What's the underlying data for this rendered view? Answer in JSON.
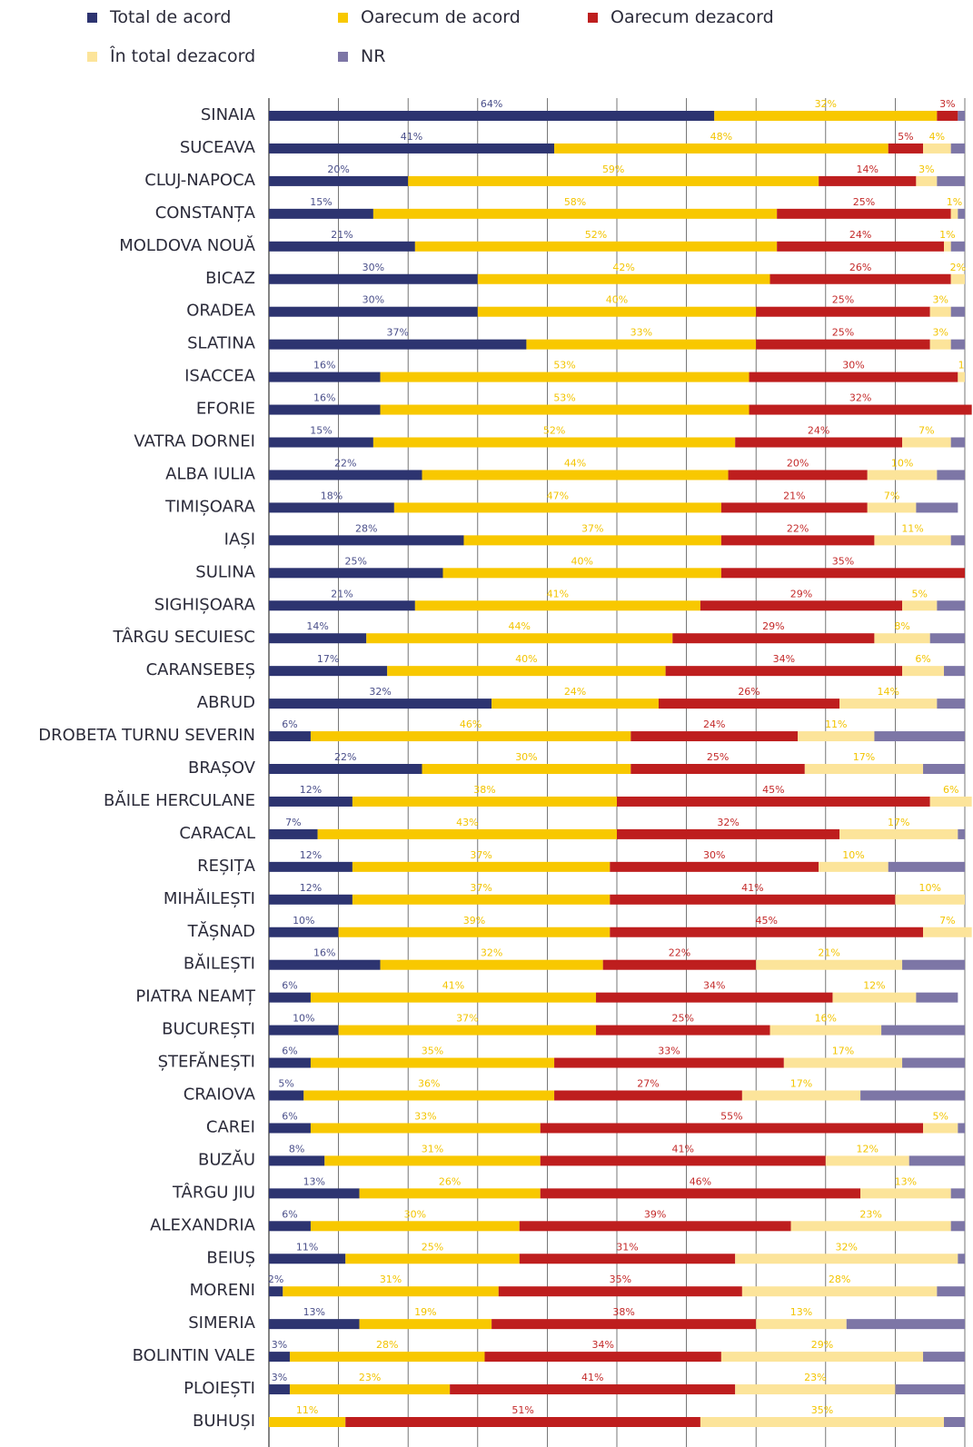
{
  "chart_data": {
    "type": "bar",
    "orientation": "horizontal",
    "stacked": true,
    "unit": "%",
    "grid": true,
    "legend_position": "top",
    "series": [
      {
        "name": "Total de acord",
        "color": "#2d3470",
        "values": [
          64,
          41,
          20,
          15,
          21,
          30,
          30,
          37,
          16,
          16,
          15,
          22,
          18,
          28,
          25,
          21,
          14,
          17,
          32,
          6,
          22,
          12,
          7,
          12,
          12,
          10,
          16,
          6,
          10,
          6,
          5,
          6,
          8,
          13,
          6,
          11,
          2,
          13,
          3,
          3,
          0
        ]
      },
      {
        "name": "Oarecum de acord",
        "color": "#f8c800",
        "values": [
          32,
          48,
          59,
          58,
          52,
          42,
          40,
          33,
          53,
          53,
          52,
          44,
          47,
          37,
          40,
          41,
          44,
          40,
          24,
          46,
          30,
          38,
          43,
          37,
          37,
          39,
          32,
          41,
          37,
          35,
          36,
          33,
          31,
          26,
          30,
          25,
          31,
          19,
          28,
          23,
          11
        ]
      },
      {
        "name": "Oarecum dezacord",
        "color": "#be1e1e",
        "values": [
          3,
          5,
          14,
          25,
          24,
          26,
          25,
          25,
          30,
          32,
          24,
          20,
          21,
          22,
          35,
          29,
          29,
          34,
          26,
          24,
          25,
          45,
          32,
          30,
          41,
          45,
          22,
          34,
          25,
          33,
          27,
          55,
          41,
          46,
          39,
          31,
          35,
          38,
          34,
          41,
          51
        ]
      },
      {
        "name": "În total dezacord",
        "color": "#fce49a",
        "values": [
          0,
          4,
          3,
          1,
          1,
          2,
          3,
          3,
          1,
          0,
          7,
          10,
          7,
          11,
          0,
          5,
          8,
          6,
          14,
          11,
          17,
          6,
          17,
          10,
          10,
          7,
          21,
          12,
          16,
          17,
          17,
          5,
          12,
          13,
          23,
          32,
          28,
          13,
          29,
          23,
          35
        ]
      },
      {
        "name": "NR",
        "color": "#7d76a6",
        "values": [
          1,
          2,
          4,
          1,
          2,
          0,
          2,
          2,
          0,
          0,
          2,
          4,
          6,
          2,
          0,
          4,
          5,
          3,
          4,
          13,
          6,
          0,
          1,
          11,
          0,
          0,
          9,
          6,
          12,
          9,
          15,
          1,
          8,
          2,
          2,
          1,
          4,
          17,
          6,
          10,
          3
        ]
      }
    ],
    "value_labels": [
      [
        "64%",
        "32%",
        "3%",
        "",
        ""
      ],
      [
        "41%",
        "48%",
        "5%",
        "4%",
        ""
      ],
      [
        "20%",
        "59%",
        "14%",
        "3%",
        ""
      ],
      [
        "15%",
        "58%",
        "25%",
        "1%",
        ""
      ],
      [
        "21%",
        "52%",
        "24%",
        "1%",
        ""
      ],
      [
        "30%",
        "42%",
        "26%",
        "2%",
        ""
      ],
      [
        "30%",
        "40%",
        "25%",
        "3%",
        ""
      ],
      [
        "37%",
        "33%",
        "25%",
        "3%",
        ""
      ],
      [
        "16%",
        "53%",
        "30%",
        "1",
        ""
      ],
      [
        "16%",
        "53%",
        "32%",
        "",
        ""
      ],
      [
        "15%",
        "52%",
        "24%",
        "7%",
        ""
      ],
      [
        "22%",
        "44%",
        "20%",
        "10%",
        ""
      ],
      [
        "18%",
        "47%",
        "21%",
        "7%",
        ""
      ],
      [
        "28%",
        "37%",
        "22%",
        "11%",
        ""
      ],
      [
        "25%",
        "40%",
        "35%",
        "",
        ""
      ],
      [
        "21%",
        "41%",
        "29%",
        "5%",
        ""
      ],
      [
        "14%",
        "44%",
        "29%",
        "8%",
        ""
      ],
      [
        "17%",
        "40%",
        "34%",
        "6%",
        ""
      ],
      [
        "32%",
        "24%",
        "26%",
        "14%",
        ""
      ],
      [
        "6%",
        "46%",
        "24%",
        "11%",
        ""
      ],
      [
        "22%",
        "30%",
        "25%",
        "17%",
        ""
      ],
      [
        "12%",
        "38%",
        "45%",
        "6%",
        ""
      ],
      [
        "7%",
        "43%",
        "32%",
        "17%",
        ""
      ],
      [
        "12%",
        "37%",
        "30%",
        "10%",
        ""
      ],
      [
        "12%",
        "37%",
        "41%",
        "10%",
        ""
      ],
      [
        "10%",
        "39%",
        "45%",
        "7%",
        ""
      ],
      [
        "16%",
        "32%",
        "22%",
        "21%",
        ""
      ],
      [
        "6%",
        "41%",
        "34%",
        "12%",
        ""
      ],
      [
        "10%",
        "37%",
        "25%",
        "16%",
        ""
      ],
      [
        "6%",
        "35%",
        "33%",
        "17%",
        ""
      ],
      [
        "5%",
        "36%",
        "27%",
        "17%",
        ""
      ],
      [
        "6%",
        "33%",
        "55%",
        "5%",
        ""
      ],
      [
        "8%",
        "31%",
        "41%",
        "12%",
        ""
      ],
      [
        "13%",
        "26%",
        "46%",
        "13%",
        ""
      ],
      [
        "6%",
        "30%",
        "39%",
        "23%",
        ""
      ],
      [
        "11%",
        "25%",
        "31%",
        "32%",
        ""
      ],
      [
        "2%",
        "31%",
        "35%",
        "28%",
        ""
      ],
      [
        "13%",
        "19%",
        "38%",
        "13%",
        ""
      ],
      [
        "3%",
        "28%",
        "34%",
        "29%",
        ""
      ],
      [
        "3%",
        "23%",
        "41%",
        "23%",
        ""
      ],
      [
        "",
        "11%",
        "51%",
        "35%",
        ""
      ]
    ],
    "categories": [
      "SINAIA",
      "SUCEAVA",
      "CLUJ-NAPOCA",
      "CONSTANȚA",
      "MOLDOVA NOUĂ",
      "BICAZ",
      "ORADEA",
      "SLATINA",
      "ISACCEA",
      "EFORIE",
      "VATRA DORNEI",
      "ALBA IULIA",
      "TIMIȘOARA",
      "IAȘI",
      "SULINA",
      "SIGHIȘOARA",
      "TÂRGU SECUIESC",
      "CARANSEBEȘ",
      "ABRUD",
      "DROBETA TURNU SEVERIN",
      "BRAȘOV",
      "BĂILE HERCULANE",
      "CARACAL",
      "REȘIȚA",
      "MIHĂILEȘTI",
      "TĂȘNAD",
      "BĂILEȘTI",
      "PIATRA NEAMȚ",
      "BUCUREȘTI",
      "ȘTEFĂNEȘTI",
      "CRAIOVA",
      "CAREI",
      "BUZĂU",
      "TÂRGU JIU",
      "ALEXANDRIA",
      "BEIUȘ",
      "MORENI",
      "SIMERIA",
      "BOLINTIN VALE",
      "PLOIEȘTI",
      "BUHUȘI"
    ]
  }
}
